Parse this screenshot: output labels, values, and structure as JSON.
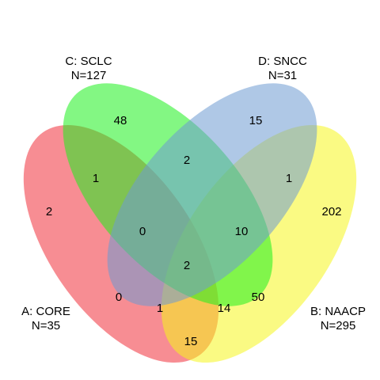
{
  "sets": [
    {
      "id": "A",
      "name": "A: CORE",
      "size": "N=35",
      "color": "#f0303a"
    },
    {
      "id": "B",
      "name": "B: NAACP",
      "size": "N=295",
      "color": "#f5f51e"
    },
    {
      "id": "C",
      "name": "C: SCLC",
      "size": "N=127",
      "color": "#1ef01e"
    },
    {
      "id": "D",
      "name": "D: SNCC",
      "size": "N=31",
      "color": "#6e9ad2"
    }
  ],
  "regions": [
    {
      "sets": "C",
      "count": "48"
    },
    {
      "sets": "D",
      "count": "15"
    },
    {
      "sets": "C&D",
      "count": "2"
    },
    {
      "sets": "A&C",
      "count": "1"
    },
    {
      "sets": "B&D",
      "count": "1"
    },
    {
      "sets": "A",
      "count": "2"
    },
    {
      "sets": "B",
      "count": "202"
    },
    {
      "sets": "A&C&D",
      "count": "0"
    },
    {
      "sets": "B&C&D",
      "count": "10"
    },
    {
      "sets": "A&B&C&D",
      "count": "2"
    },
    {
      "sets": "A&D",
      "count": "0"
    },
    {
      "sets": "A&B&D",
      "count": "1"
    },
    {
      "sets": "A&B&C",
      "count": "14"
    },
    {
      "sets": "B&C",
      "count": "50"
    },
    {
      "sets": "A&B",
      "count": "15"
    }
  ]
}
